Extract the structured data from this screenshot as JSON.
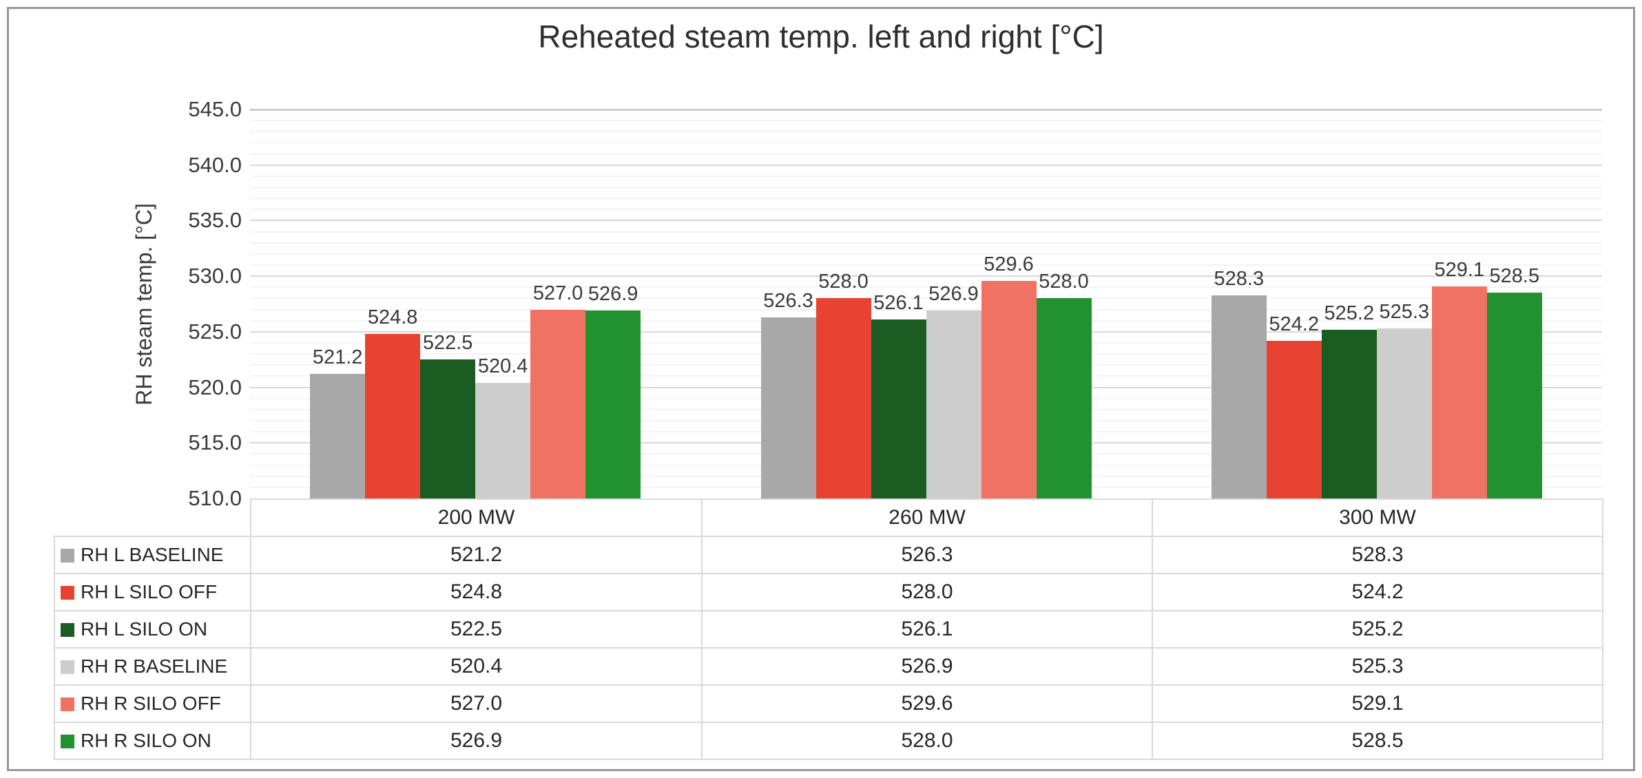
{
  "chart_data": {
    "type": "bar",
    "title": "Reheated steam temp. left and right [°C]",
    "ylabel": "RH steam temp. [°C]",
    "xlabel": "",
    "ylim": [
      510.0,
      545.0
    ],
    "ytick_step": 5,
    "ytick_decimals": 1,
    "minor_grid_unit": 1,
    "grid": true,
    "legend_position": "table-left",
    "categories": [
      "200 MW",
      "260 MW",
      "300 MW"
    ],
    "series": [
      {
        "name": "RH L BASELINE",
        "color": "#a8a8a8",
        "values": [
          521.2,
          526.3,
          528.3
        ]
      },
      {
        "name": "RH L SILO OFF",
        "color": "#e84332",
        "values": [
          524.8,
          528.0,
          524.2
        ]
      },
      {
        "name": "RH L SILO ON",
        "color": "#1a5c22",
        "values": [
          522.5,
          526.1,
          525.2
        ]
      },
      {
        "name": "RH R BASELINE",
        "color": "#cdcdcd",
        "values": [
          520.4,
          526.9,
          525.3
        ]
      },
      {
        "name": "RH R SILO OFF",
        "color": "#ef7265",
        "values": [
          527.0,
          529.6,
          529.1
        ]
      },
      {
        "name": "RH R SILO ON",
        "color": "#229231",
        "values": [
          526.9,
          528.0,
          528.5
        ]
      }
    ],
    "value_label_decimals": 1
  },
  "style": {
    "frame_border": "#979797",
    "grid_major": "#d8d8d8",
    "grid_minor": "#f3f3f3",
    "grid_top": "#cccccc",
    "table_border": "#d9d9d9",
    "text_color": "#3a3a3a"
  }
}
